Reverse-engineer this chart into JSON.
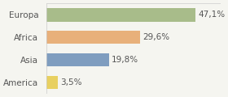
{
  "categories": [
    "America",
    "Asia",
    "Africa",
    "Europa"
  ],
  "values": [
    3.5,
    19.8,
    29.6,
    47.1
  ],
  "labels": [
    "3,5%",
    "19,8%",
    "29,6%",
    "47,1%"
  ],
  "bar_colors": [
    "#e8d060",
    "#7f9dbf",
    "#e8b07a",
    "#a8bc8a"
  ],
  "background_color": "#f5f5f0",
  "xlim": [
    0,
    55
  ],
  "label_fontsize": 7.5,
  "cat_fontsize": 7.5
}
